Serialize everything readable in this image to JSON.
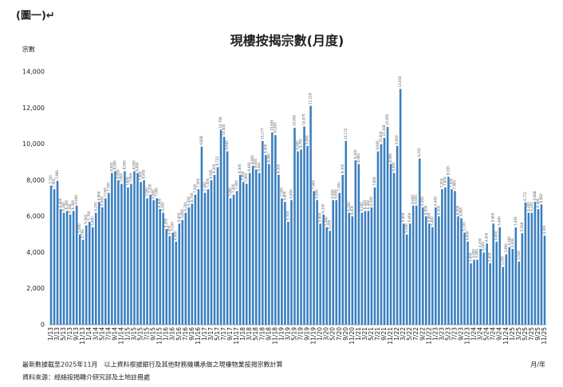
{
  "header": "(圖一)↵",
  "chart_data": {
    "type": "bar",
    "title": "現樓按揭宗數(月度)",
    "y_label": "宗數",
    "x_label": "月/年",
    "notes": [
      "最新數據截至2025年11月　以上資料根據銀行及其他財務機構承做之現樓物業按揭宗數計算",
      "資料來源：經絡按揭轉介研究部及土地註冊處"
    ],
    "color": "#3a7fc0",
    "ylim": [
      0,
      14000
    ],
    "yticks": [
      0,
      {
        "value": 2000,
        "label": "2,000"
      },
      {
        "value": 4000,
        "label": "4,000"
      },
      {
        "value": 6000,
        "label": "6,000"
      },
      {
        "value": 8000,
        "label": "8,000"
      },
      {
        "value": 10000,
        "label": "10,000"
      },
      {
        "value": 12000,
        "label": "12,000"
      },
      {
        "value": 14000,
        "label": "14,000"
      }
    ],
    "categories": [
      "1/13",
      null,
      "3/13",
      null,
      "5/13",
      null,
      "7/13",
      null,
      "9/13",
      null,
      "11/13",
      null,
      "1/14",
      null,
      "3/14",
      null,
      "5/14",
      null,
      "7/14",
      null,
      "9/14",
      null,
      "11/14",
      null,
      "1/15",
      null,
      "3/15",
      null,
      "5/15",
      null,
      "7/15",
      null,
      "9/15",
      null,
      "11/15",
      null,
      "1/16",
      null,
      "3/16",
      null,
      "5/16",
      null,
      "7/16",
      null,
      "9/16",
      null,
      "11/16",
      null,
      "1/17",
      null,
      "3/17",
      null,
      "5/17",
      null,
      "7/17",
      null,
      "9/17",
      null,
      "11/17",
      null,
      "1/18",
      null,
      "3/18",
      null,
      "5/18",
      null,
      "7/18",
      null,
      "9/18",
      null,
      "11/18",
      null,
      "1/19",
      null,
      "3/19",
      null,
      "5/19",
      null,
      "7/19",
      null,
      "9/19",
      null,
      "11/19",
      null,
      "1/20",
      null,
      "3/20",
      null,
      "5/20",
      null,
      "7/20",
      null,
      "9/20",
      null,
      "11/20",
      null,
      "1/21",
      null,
      "3/21",
      null,
      "5/21",
      null,
      "7/21",
      null,
      "9/21",
      null,
      "11/21",
      null,
      "1/22",
      null,
      "3/22",
      null,
      "5/22",
      null,
      "7/22",
      null,
      "9/22",
      null,
      "11/22",
      null,
      "1/23",
      null,
      "3/23",
      null,
      "5/23",
      null,
      "7/23",
      null,
      "9/23",
      null,
      "11/23",
      null,
      "1/24",
      null,
      "3/24",
      null,
      "5/24",
      null,
      "7/24",
      null,
      "9/24",
      null,
      "11/24",
      null,
      "1/25",
      null,
      "3/25",
      null,
      "5/25",
      null,
      "7/25",
      null,
      "9/25",
      null,
      "11/25"
    ],
    "values": [
      7700,
      7500,
      7964,
      6400,
      6200,
      6300,
      6100,
      6300,
      6600,
      5000,
      4700,
      5500,
      5700,
      5400,
      6200,
      6800,
      6500,
      7000,
      7300,
      8400,
      8500,
      8000,
      7800,
      8500,
      7600,
      7800,
      8500,
      8400,
      7900,
      8000,
      7000,
      7200,
      6900,
      7000,
      6400,
      6200,
      5300,
      4900,
      5100,
      4600,
      5600,
      5800,
      6200,
      6500,
      6700,
      7200,
      7500,
      9858,
      7300,
      7500,
      8000,
      8300,
      8722,
      10799,
      10400,
      9600,
      7000,
      7200,
      7400,
      8300,
      7900,
      7800,
      8400,
      8800,
      8600,
      8400,
      10177,
      9400,
      8900,
      10645,
      10500,
      8300,
      7000,
      6800,
      5700,
      6900,
      10906,
      9600,
      9700,
      10975,
      9900,
      12119,
      7400,
      6900,
      5600,
      6100,
      5400,
      5200,
      6900,
      6900,
      7300,
      8300,
      10172,
      6200,
      6000,
      9100,
      8900,
      6200,
      6300,
      6300,
      6500,
      7600,
      9600,
      10000,
      10348,
      10955,
      8900,
      8400,
      9900,
      13054,
      5600,
      5000,
      5600,
      6600,
      6600,
      9202,
      6500,
      6000,
      5600,
      5400,
      6500,
      6000,
      7500,
      7600,
      8195,
      7500,
      7400,
      6000,
      5900,
      5100,
      4600,
      3400,
      3600,
      3600,
      4200,
      4000,
      4500,
      3400,
      5600,
      4600,
      5400,
      3200,
      3900,
      4300,
      4200,
      5393,
      3500,
      5068,
      6772,
      6200,
      6200,
      6808,
      6400,
      6662,
      4931
    ],
    "value_labels": [
      "7,700",
      "7,500",
      "7,964",
      "6,400",
      "6,200",
      "6,300",
      "6,100",
      "6,300",
      "6,600",
      "5,000",
      "4,700",
      "5,500",
      "5,700",
      "5,400",
      "6,200",
      "6,800",
      "6,500",
      "7,000",
      "7,300",
      "8,400",
      "8,500",
      "8,000",
      "7,800",
      "8,500",
      "7,600",
      "7,800",
      "8,500",
      "8,400",
      "7,900",
      "8,000",
      "7,000",
      "7,200",
      "6,900",
      "7,000",
      "6,400",
      "6,200",
      "5,300",
      "4,900",
      "5,100",
      "4,600",
      "5,600",
      "5,800",
      "6,200",
      "6,500",
      "6,700",
      "7,200",
      "7,500",
      "9,858",
      "7,300",
      "7,500",
      "8,000",
      "8,300",
      "8,722",
      "10,799",
      "10,400",
      "9,600",
      "7,000",
      "7,200",
      "7,400",
      "8,300",
      "7,900",
      "7,800",
      "8,400",
      "8,800",
      "8,600",
      "8,400",
      "10,177",
      "9,400",
      "8,900",
      "10,645",
      "10,500",
      "8,300",
      "7,000",
      "6,800",
      "5,700",
      "6,900",
      "10,906",
      "9,600",
      "9,700",
      "10,975",
      "9,900",
      "12,119",
      "7,400",
      "6,900",
      "5,600",
      "6,100",
      "5,400",
      "5,200",
      "6,900",
      "6,900",
      "7,300",
      "8,300",
      "10,172",
      "6,200",
      "6,000",
      "9,100",
      "8,900",
      "6,200",
      "6,300",
      "6,300",
      "6,500",
      "7,600",
      "9,600",
      "10,000",
      "10,348",
      "10,955",
      "8,900",
      "8,400",
      "9,900",
      "13,054",
      "5,600",
      "5,000",
      "5,600",
      "6,600",
      "6,600",
      "9,202",
      "6,500",
      "6,000",
      "5,600",
      "5,400",
      "6,500",
      "6,000",
      "7,500",
      "7,600",
      "8,195",
      "7,500",
      "7,400",
      "6,000",
      "5,900",
      "5,100",
      "4,600",
      "3,400",
      "3,600",
      "3,600",
      "4,200",
      "4,000",
      "4,500",
      "3,400",
      "5,600",
      "4,600",
      "5,400",
      "3,200",
      "3,900",
      "4,300",
      "4,200",
      "5,393",
      "3,500",
      "5,068",
      "6,772",
      "6,200",
      "6,200",
      "6,808",
      "6,400",
      "6,662",
      "4,931"
    ]
  }
}
